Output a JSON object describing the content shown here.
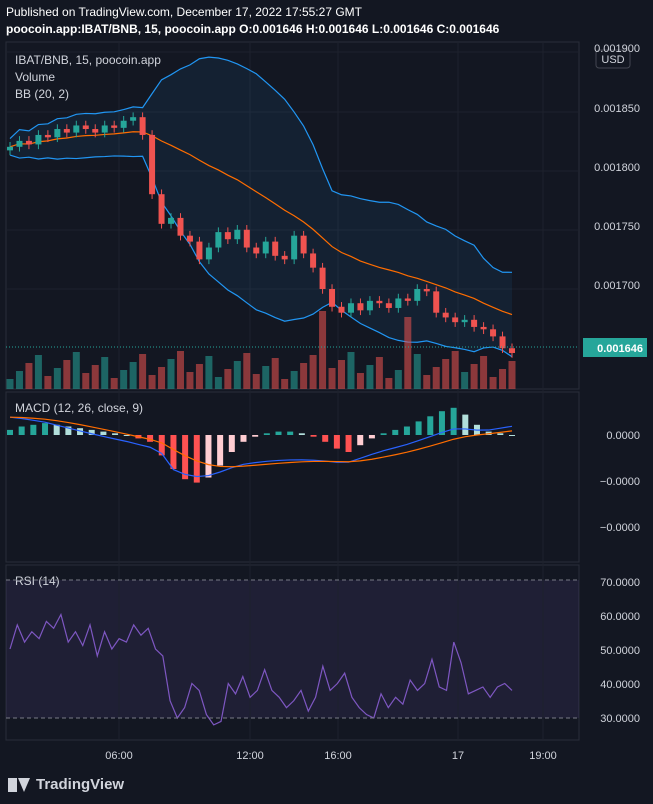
{
  "header": {
    "published": "Published on TradingView.com, December 17, 2022 17:55:27 GMT",
    "symbol_line": "poocoin.app:IBAT/BNB, 15",
    "source": "poocoin.app",
    "ohlc": "O:0.001646 H:0.001646 L:0.001646 C:0.001646"
  },
  "footer": {
    "brand": "TradingView"
  },
  "chart_data": [
    {
      "type": "candlestick",
      "title": "IBAT/BNB, 15, poocoin.app",
      "currency": "USD",
      "indicators": [
        "Volume",
        "BB (20, 2)"
      ],
      "last_price_label": "0.001646",
      "y_ticks": [
        "0.001900",
        "0.001850",
        "0.001800",
        "0.001750",
        "0.001700"
      ],
      "ylim": [
        0.00164,
        0.0019
      ],
      "x_ticks": [
        "06:00",
        "12:00",
        "16:00",
        "17",
        "19:00"
      ],
      "colors": {
        "up": "#26a69a",
        "down": "#ef5350",
        "bb": "#2962ff",
        "basis": "#ff6d00"
      },
      "close_series": [
        0.00182,
        0.001825,
        0.001822,
        0.00183,
        0.001828,
        0.001835,
        0.001832,
        0.001838,
        0.001835,
        0.001832,
        0.001838,
        0.001836,
        0.001842,
        0.001845,
        0.00183,
        0.00178,
        0.001755,
        0.00176,
        0.001745,
        0.00174,
        0.001725,
        0.001735,
        0.001748,
        0.001742,
        0.00175,
        0.001735,
        0.00173,
        0.00174,
        0.001728,
        0.001725,
        0.001745,
        0.00173,
        0.001718,
        0.0017,
        0.001685,
        0.00168,
        0.001688,
        0.001682,
        0.00169,
        0.001688,
        0.001684,
        0.001692,
        0.00169,
        0.0017,
        0.001698,
        0.00168,
        0.001676,
        0.001672,
        0.001674,
        0.001668,
        0.001666,
        0.00166,
        0.00165,
        0.001646
      ]
    },
    {
      "type": "line",
      "title": "MACD (12, 26, close, 9)",
      "y_ticks": [
        "0.0000",
        "−0.0000",
        "−0.0000"
      ],
      "histogram": [
        0.3,
        0.5,
        0.6,
        0.7,
        0.6,
        0.5,
        0.4,
        0.3,
        0.2,
        0.1,
        0.0,
        -0.2,
        -0.4,
        -1.2,
        -2.0,
        -2.6,
        -2.8,
        -2.5,
        -1.8,
        -1.0,
        -0.4,
        -0.1,
        0.1,
        0.2,
        0.2,
        0.1,
        -0.1,
        -0.4,
        -0.8,
        -1.0,
        -0.6,
        -0.2,
        0.1,
        0.3,
        0.5,
        0.8,
        1.1,
        1.4,
        1.6,
        1.2,
        0.6,
        0.2,
        0.1,
        0.0
      ]
    },
    {
      "type": "line",
      "title": "RSI (14)",
      "y_ticks": [
        "70.0000",
        "60.0000",
        "50.0000",
        "40.0000",
        "30.0000"
      ],
      "ylim": [
        25,
        72
      ],
      "values": [
        50,
        57,
        52,
        55,
        53,
        58,
        56,
        60,
        52,
        55,
        51,
        57,
        48,
        55,
        50,
        53,
        52,
        57,
        54,
        56,
        50,
        48,
        35,
        30,
        33,
        40,
        38,
        31,
        28,
        29,
        40,
        37,
        42,
        36,
        38,
        44,
        38,
        36,
        33,
        35,
        38,
        32,
        36,
        45,
        38,
        40,
        43,
        36,
        33,
        31,
        30,
        37,
        33,
        36,
        34,
        41,
        38,
        40,
        47,
        39,
        38,
        52,
        46,
        37,
        38,
        39,
        36,
        39,
        40,
        38
      ]
    }
  ]
}
